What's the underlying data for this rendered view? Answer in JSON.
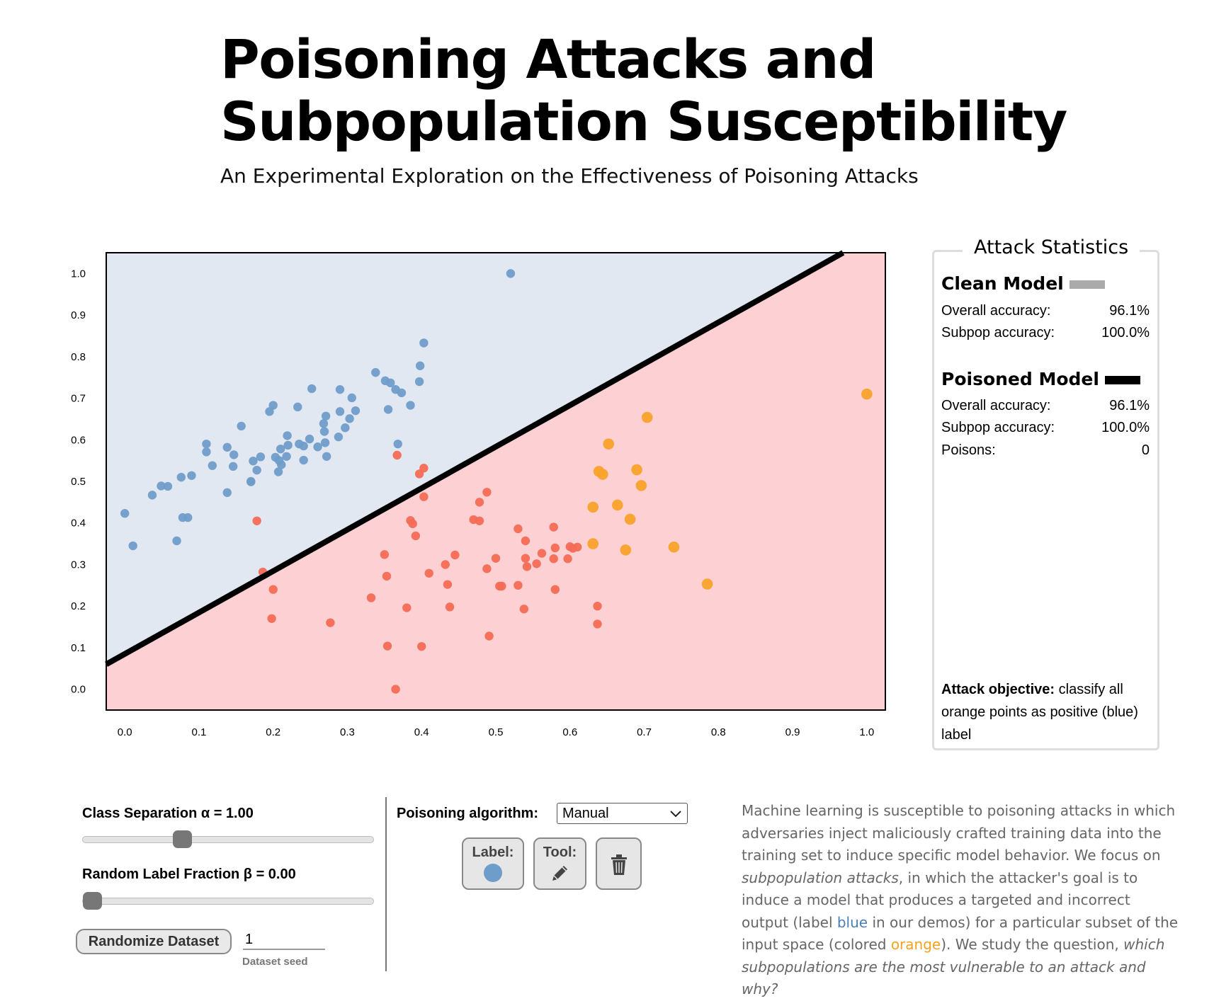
{
  "header": {
    "title": "Poisoning Attacks and Subpopulation Susceptibility",
    "subtitle": "An Experimental Exploration on the Effectiveness of Poisoning Attacks"
  },
  "colors": {
    "blue_region": "#e1e8f2",
    "red_region": "#fdd0d3",
    "blue_point": "#6f9dc9",
    "red_point": "#f46c55",
    "orange_point": "#f9a22a",
    "boundary": "#000000"
  },
  "chart_data": {
    "type": "scatter",
    "title": "",
    "xlabel": "",
    "ylabel": "",
    "xlim": [
      -0.025,
      1.025
    ],
    "ylim": [
      -0.05,
      1.05
    ],
    "xticks": [
      "0.0",
      "0.1",
      "0.2",
      "0.3",
      "0.4",
      "0.5",
      "0.6",
      "0.7",
      "0.8",
      "0.9",
      "1.0"
    ],
    "yticks": [
      "0.0",
      "0.1",
      "0.2",
      "0.3",
      "0.4",
      "0.5",
      "0.6",
      "0.7",
      "0.8",
      "0.9",
      "1.0"
    ],
    "decision_boundary": {
      "x": [
        -0.025,
        0.968
      ],
      "y": [
        0.06,
        1.05
      ]
    },
    "series": [
      {
        "class": "blue",
        "points": [
          [
            0.52,
            1.0
          ],
          [
            0.403,
            0.833
          ],
          [
            0.398,
            0.778
          ],
          [
            0.397,
            0.74
          ],
          [
            0.385,
            0.683
          ],
          [
            0.373,
            0.713
          ],
          [
            0.365,
            0.721
          ],
          [
            0.358,
            0.737
          ],
          [
            0.351,
            0.742
          ],
          [
            0.338,
            0.762
          ],
          [
            0.355,
            0.673
          ],
          [
            0.368,
            0.59
          ],
          [
            0.311,
            0.67
          ],
          [
            0.306,
            0.701
          ],
          [
            0.303,
            0.651
          ],
          [
            0.297,
            0.629
          ],
          [
            0.29,
            0.721
          ],
          [
            0.29,
            0.668
          ],
          [
            0.288,
            0.607
          ],
          [
            0.271,
            0.657
          ],
          [
            0.268,
            0.639
          ],
          [
            0.269,
            0.62
          ],
          [
            0.27,
            0.593
          ],
          [
            0.272,
            0.56
          ],
          [
            0.26,
            0.583
          ],
          [
            0.252,
            0.723
          ],
          [
            0.249,
            0.602
          ],
          [
            0.241,
            0.585
          ],
          [
            0.235,
            0.59
          ],
          [
            0.241,
            0.551
          ],
          [
            0.233,
            0.679
          ],
          [
            0.219,
            0.61
          ],
          [
            0.22,
            0.587
          ],
          [
            0.218,
            0.56
          ],
          [
            0.21,
            0.578
          ],
          [
            0.211,
            0.54
          ],
          [
            0.207,
            0.523
          ],
          [
            0.208,
            0.55
          ],
          [
            0.203,
            0.558
          ],
          [
            0.2,
            0.683
          ],
          [
            0.195,
            0.668
          ],
          [
            0.183,
            0.559
          ],
          [
            0.178,
            0.527
          ],
          [
            0.173,
            0.549
          ],
          [
            0.157,
            0.633
          ],
          [
            0.147,
            0.564
          ],
          [
            0.146,
            0.536
          ],
          [
            0.138,
            0.582
          ],
          [
            0.138,
            0.473
          ],
          [
            0.17,
            0.5
          ],
          [
            0.17,
            0.499
          ],
          [
            0.118,
            0.538
          ],
          [
            0.11,
            0.571
          ],
          [
            0.11,
            0.59
          ],
          [
            0.09,
            0.514
          ],
          [
            0.076,
            0.51
          ],
          [
            0.058,
            0.488
          ],
          [
            0.049,
            0.489
          ],
          [
            0.037,
            0.467
          ],
          [
            0.078,
            0.413
          ],
          [
            0.085,
            0.413
          ],
          [
            0.07,
            0.357
          ],
          [
            0.0,
            0.423
          ],
          [
            0.011,
            0.345
          ]
        ]
      },
      {
        "class": "red",
        "points": [
          [
            0.367,
            0.563
          ],
          [
            0.403,
            0.532
          ],
          [
            0.397,
            0.518
          ],
          [
            0.403,
            0.463
          ],
          [
            0.488,
            0.474
          ],
          [
            0.478,
            0.45
          ],
          [
            0.47,
            0.408
          ],
          [
            0.478,
            0.405
          ],
          [
            0.385,
            0.406
          ],
          [
            0.388,
            0.398
          ],
          [
            0.392,
            0.369
          ],
          [
            0.578,
            0.39
          ],
          [
            0.53,
            0.386
          ],
          [
            0.54,
            0.357
          ],
          [
            0.58,
            0.34
          ],
          [
            0.562,
            0.327
          ],
          [
            0.6,
            0.343
          ],
          [
            0.604,
            0.339
          ],
          [
            0.61,
            0.342
          ],
          [
            0.597,
            0.314
          ],
          [
            0.578,
            0.314
          ],
          [
            0.54,
            0.315
          ],
          [
            0.5,
            0.315
          ],
          [
            0.555,
            0.302
          ],
          [
            0.542,
            0.295
          ],
          [
            0.488,
            0.29
          ],
          [
            0.445,
            0.323
          ],
          [
            0.432,
            0.3
          ],
          [
            0.41,
            0.279
          ],
          [
            0.35,
            0.324
          ],
          [
            0.353,
            0.272
          ],
          [
            0.435,
            0.252
          ],
          [
            0.53,
            0.25
          ],
          [
            0.505,
            0.248
          ],
          [
            0.508,
            0.248
          ],
          [
            0.58,
            0.24
          ],
          [
            0.2,
            0.24
          ],
          [
            0.186,
            0.282
          ],
          [
            0.332,
            0.22
          ],
          [
            0.38,
            0.196
          ],
          [
            0.438,
            0.198
          ],
          [
            0.538,
            0.193
          ],
          [
            0.637,
            0.2
          ],
          [
            0.198,
            0.17
          ],
          [
            0.277,
            0.16
          ],
          [
            0.637,
            0.157
          ],
          [
            0.491,
            0.128
          ],
          [
            0.354,
            0.104
          ],
          [
            0.4,
            0.103
          ],
          [
            0.365,
            0.0
          ],
          [
            0.178,
            0.405
          ]
        ]
      },
      {
        "class": "orange",
        "points": [
          [
            1.0,
            0.71
          ],
          [
            0.704,
            0.654
          ],
          [
            0.652,
            0.59
          ],
          [
            0.639,
            0.524
          ],
          [
            0.644,
            0.517
          ],
          [
            0.69,
            0.528
          ],
          [
            0.696,
            0.49
          ],
          [
            0.664,
            0.443
          ],
          [
            0.631,
            0.438
          ],
          [
            0.681,
            0.409
          ],
          [
            0.631,
            0.35
          ],
          [
            0.675,
            0.335
          ],
          [
            0.74,
            0.342
          ],
          [
            0.785,
            0.253
          ]
        ]
      }
    ]
  },
  "stats": {
    "legend": "Attack Statistics",
    "clean_title": "Clean Model",
    "clean_overall_label": "Overall accuracy:",
    "clean_overall_value": "96.1%",
    "clean_subpop_label": "Subpop accuracy:",
    "clean_subpop_value": "100.0%",
    "poisoned_title": "Poisoned Model",
    "poisoned_overall_label": "Overall accuracy:",
    "poisoned_overall_value": "96.1%",
    "poisoned_subpop_label": "Subpop accuracy:",
    "poisoned_subpop_value": "100.0%",
    "poisons_label": "Poisons:",
    "poisons_value": "0",
    "objective_bold": "Attack objective:",
    "objective_text": "classify all orange points as positive (blue) label",
    "clean_swatch_color": "#aaaaaa",
    "poisoned_swatch_color": "#000000"
  },
  "controls": {
    "separation_label": "Class Separation α = 1.00",
    "separation_level": 0.33,
    "label_fraction_label": "Random Label Fraction β = 0.00",
    "label_fraction_level": 0.0,
    "randomize_label": "Randomize Dataset",
    "seed_value": "1",
    "seed_caption": "Dataset seed",
    "algorithm_label": "Poisoning algorithm:",
    "algorithm_value": "Manual",
    "label_button": "Label:",
    "tool_button": "Tool:",
    "label_dot_color": "#6f9dc9",
    "tool_icon": "pencil-icon",
    "clear_icon": "trash-icon"
  },
  "description": {
    "p1": "Machine learning is susceptible to poisoning attacks in which adversaries inject maliciously crafted training data into the training set to induce specific model behavior. We focus on ",
    "em1": "subpopulation attacks",
    "p2": ", in which the attacker's goal is to induce a model that produces a targeted and incorrect output (label ",
    "blue_word": "blue",
    "p3": " in our demos) for a particular subset of the input space (colored ",
    "orange_word": "orange",
    "p4": "). We study the question, ",
    "em2": "which subpopulations are the most vulnerable to an attack and why?"
  }
}
